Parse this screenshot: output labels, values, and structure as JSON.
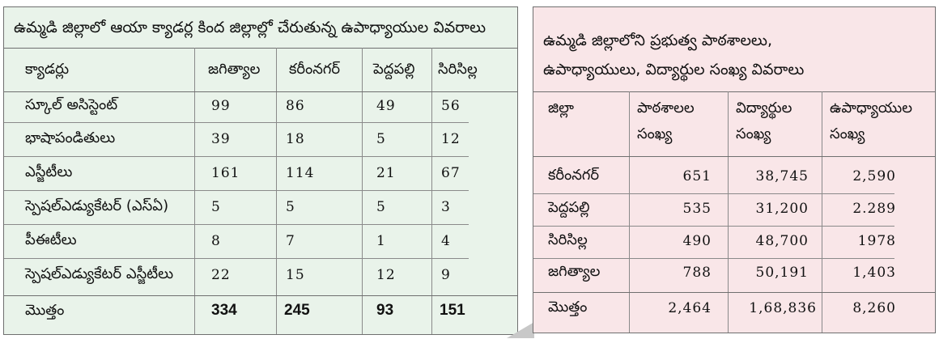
{
  "left": {
    "title": "ఉమ్మడి జిల్లాలో ఆయా క్యాడర్ల కింద జిల్లాల్లో చేరుతున్న ఉపాధ్యాయుల వివరాలు",
    "headers": [
      "క్యాడర్లు",
      "జగిత్యాల",
      "కరీంనగర్",
      "పెద్దపల్లి",
      "సిరిసిల్ల"
    ],
    "rows": [
      {
        "label": "స్కూల్ అసిస్టెంట్",
        "values": [
          "99",
          "86",
          "49",
          "56"
        ]
      },
      {
        "label": "భాషాపండితులు",
        "values": [
          "39",
          "18",
          "5",
          "12"
        ]
      },
      {
        "label": "ఎస్జీటీలు",
        "values": [
          "161",
          "114",
          "21",
          "67"
        ]
      },
      {
        "label": "స్పెషల్ఎడ్యుకేటర్ (ఎస్ఏ)",
        "values": [
          "5",
          "5",
          "5",
          "3"
        ]
      },
      {
        "label": "పీఈటీలు",
        "values": [
          "8",
          "7",
          "1",
          "4"
        ]
      },
      {
        "label": "స్పెషల్ఎడ్యుకేటర్ ఎస్జీటీలు",
        "values": [
          "22",
          "15",
          "12",
          "9"
        ]
      }
    ],
    "total": {
      "label": "మొత్తం",
      "values": [
        "334",
        "245",
        "93",
        "151"
      ]
    }
  },
  "right": {
    "title_line1": "ఉమ్మడి జిల్లాలోని ప్రభుత్వ పాఠశాలలు,",
    "title_line2": "ఉపాధ్యాయులు, విద్యార్థుల సంఖ్య వివరాలు",
    "headers": [
      {
        "l1": "జిల్లా",
        "l2": ""
      },
      {
        "l1": "పాఠశాలల",
        "l2": "సంఖ్య"
      },
      {
        "l1": "విద్యార్థుల",
        "l2": "సంఖ్య"
      },
      {
        "l1": "ఉపాధ్యాయుల",
        "l2": "సంఖ్య"
      }
    ],
    "rows": [
      {
        "label": "కరీంనగర్",
        "values": [
          "651",
          "38,745",
          "2,590"
        ]
      },
      {
        "label": "పెద్దపల్లి",
        "values": [
          "535",
          "31,200",
          "2.289"
        ]
      },
      {
        "label": "సిరిసిల్ల",
        "values": [
          "490",
          "48,700",
          "1978"
        ]
      },
      {
        "label": "జగిత్యాల",
        "values": [
          "788",
          "50,191",
          "1,403"
        ]
      }
    ],
    "total": {
      "label": "మొత్తం",
      "values": [
        "2,464",
        "1,68,836",
        "8,260"
      ]
    }
  }
}
